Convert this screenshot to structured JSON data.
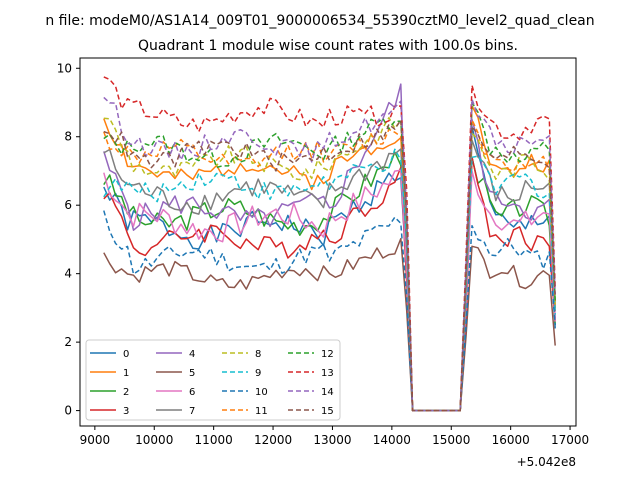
{
  "chart_data": {
    "type": "line",
    "suptitle": "n file: modeM0/AS1A14_009T01_9000006534_55390cztM0_level2_quad_clean",
    "title": "Quadrant 1 module wise count rates with 100.0s bins.",
    "xlabel": "",
    "ylabel": "",
    "x_offset_label": "+5.042e8",
    "xlim": [
      8750,
      17100
    ],
    "ylim": [
      -0.45,
      10.3
    ],
    "xticks": [
      "9000",
      "10000",
      "11000",
      "12000",
      "13000",
      "14000",
      "15000",
      "16000",
      "17000"
    ],
    "yticks": [
      "0",
      "2",
      "4",
      "6",
      "8",
      "10"
    ],
    "grid": false,
    "legend": {
      "position": "lower-left",
      "columns": 4
    },
    "x": {
      "segment1": {
        "start": 9150,
        "end": 14150,
        "step": 100
      },
      "drop": [
        14250,
        14350
      ],
      "gap_zero": [
        14350,
        15150
      ],
      "segment2": {
        "start": 15150,
        "end": 16750,
        "step": 100
      }
    },
    "series": [
      {
        "name": "0",
        "color": "#1f77b4",
        "dash": "solid",
        "seg1_start": 6.5,
        "seg1_level": 5.3,
        "seg1_end": 7.0,
        "peak": 8.3,
        "seg2_level": 5.5,
        "seg2_end": 2.4,
        "noise": 0.35,
        "seed": 1
      },
      {
        "name": "1",
        "color": "#ff7f0e",
        "dash": "solid",
        "seg1_start": 8.6,
        "seg1_level": 7.0,
        "seg1_end": 8.2,
        "peak": 8.9,
        "seg2_level": 7.1,
        "seg2_end": 3.0,
        "noise": 0.3,
        "seed": 2
      },
      {
        "name": "2",
        "color": "#2ca02c",
        "dash": "solid",
        "seg1_start": 6.8,
        "seg1_level": 5.7,
        "seg1_end": 7.5,
        "peak": 7.4,
        "seg2_level": 5.8,
        "seg2_end": 2.5,
        "noise": 0.35,
        "seed": 3
      },
      {
        "name": "3",
        "color": "#d62728",
        "dash": "solid",
        "seg1_start": 6.5,
        "seg1_level": 5.0,
        "seg1_end": 6.8,
        "peak": 7.4,
        "seg2_level": 5.0,
        "seg2_end": 2.6,
        "noise": 0.35,
        "seed": 4
      },
      {
        "name": "4",
        "color": "#9467bd",
        "dash": "solid",
        "seg1_start": 7.3,
        "seg1_level": 5.8,
        "seg1_end": 9.3,
        "peak": 8.5,
        "seg2_level": 6.0,
        "seg2_end": 2.7,
        "noise": 0.35,
        "seed": 5
      },
      {
        "name": "5",
        "color": "#8c564b",
        "dash": "solid",
        "seg1_start": 4.5,
        "seg1_level": 3.9,
        "seg1_end": 4.9,
        "peak": 4.8,
        "seg2_level": 4.0,
        "seg2_end": 1.9,
        "noise": 0.25,
        "seed": 6
      },
      {
        "name": "6",
        "color": "#e377c2",
        "dash": "solid",
        "seg1_start": 6.9,
        "seg1_level": 5.5,
        "seg1_end": 6.9,
        "peak": 7.0,
        "seg2_level": 5.6,
        "seg2_end": 2.6,
        "noise": 0.4,
        "seed": 7
      },
      {
        "name": "7",
        "color": "#7f7f7f",
        "dash": "solid",
        "seg1_start": 7.6,
        "seg1_level": 6.3,
        "seg1_end": 7.6,
        "peak": 7.9,
        "seg2_level": 6.4,
        "seg2_end": 2.9,
        "noise": 0.35,
        "seed": 8
      },
      {
        "name": "8",
        "color": "#bcbd22",
        "dash": "dashed",
        "seg1_start": 8.7,
        "seg1_level": 7.2,
        "seg1_end": 8.5,
        "peak": 8.1,
        "seg2_level": 7.1,
        "seg2_end": 3.1,
        "noise": 0.3,
        "seed": 9
      },
      {
        "name": "9",
        "color": "#17becf",
        "dash": "dashed",
        "seg1_start": 6.5,
        "seg1_level": 6.6,
        "seg1_end": 7.4,
        "peak": 7.4,
        "seg2_level": 6.6,
        "seg2_end": 2.8,
        "noise": 0.3,
        "seed": 10
      },
      {
        "name": "10",
        "color": "#1f77b4",
        "dash": "dashed",
        "seg1_start": 5.6,
        "seg1_level": 4.4,
        "seg1_end": 5.6,
        "peak": 5.4,
        "seg2_level": 4.6,
        "seg2_end": 2.5,
        "noise": 0.3,
        "seed": 11
      },
      {
        "name": "11",
        "color": "#ff7f0e",
        "dash": "dashed",
        "seg1_start": 8.0,
        "seg1_level": 7.4,
        "seg1_end": 8.2,
        "peak": 8.5,
        "seg2_level": 7.2,
        "seg2_end": 3.2,
        "noise": 0.3,
        "seed": 12
      },
      {
        "name": "12",
        "color": "#2ca02c",
        "dash": "dashed",
        "seg1_start": 7.9,
        "seg1_level": 7.6,
        "seg1_end": 8.7,
        "peak": 9.0,
        "seg2_level": 7.5,
        "seg2_end": 3.2,
        "noise": 0.3,
        "seed": 13
      },
      {
        "name": "13",
        "color": "#d62728",
        "dash": "dashed",
        "seg1_start": 9.8,
        "seg1_level": 8.6,
        "seg1_end": 8.6,
        "peak": 9.5,
        "seg2_level": 8.3,
        "seg2_end": 3.6,
        "noise": 0.3,
        "seed": 14
      },
      {
        "name": "14",
        "color": "#9467bd",
        "dash": "dashed",
        "seg1_start": 9.3,
        "seg1_level": 7.8,
        "seg1_end": 8.8,
        "peak": 9.1,
        "seg2_level": 7.8,
        "seg2_end": 3.4,
        "noise": 0.3,
        "seed": 15
      },
      {
        "name": "15",
        "color": "#8c564b",
        "dash": "dashed",
        "seg1_start": 8.4,
        "seg1_level": 7.5,
        "seg1_end": 8.3,
        "peak": 8.3,
        "seg2_level": 7.4,
        "seg2_end": 3.3,
        "noise": 0.3,
        "seed": 16
      }
    ]
  }
}
